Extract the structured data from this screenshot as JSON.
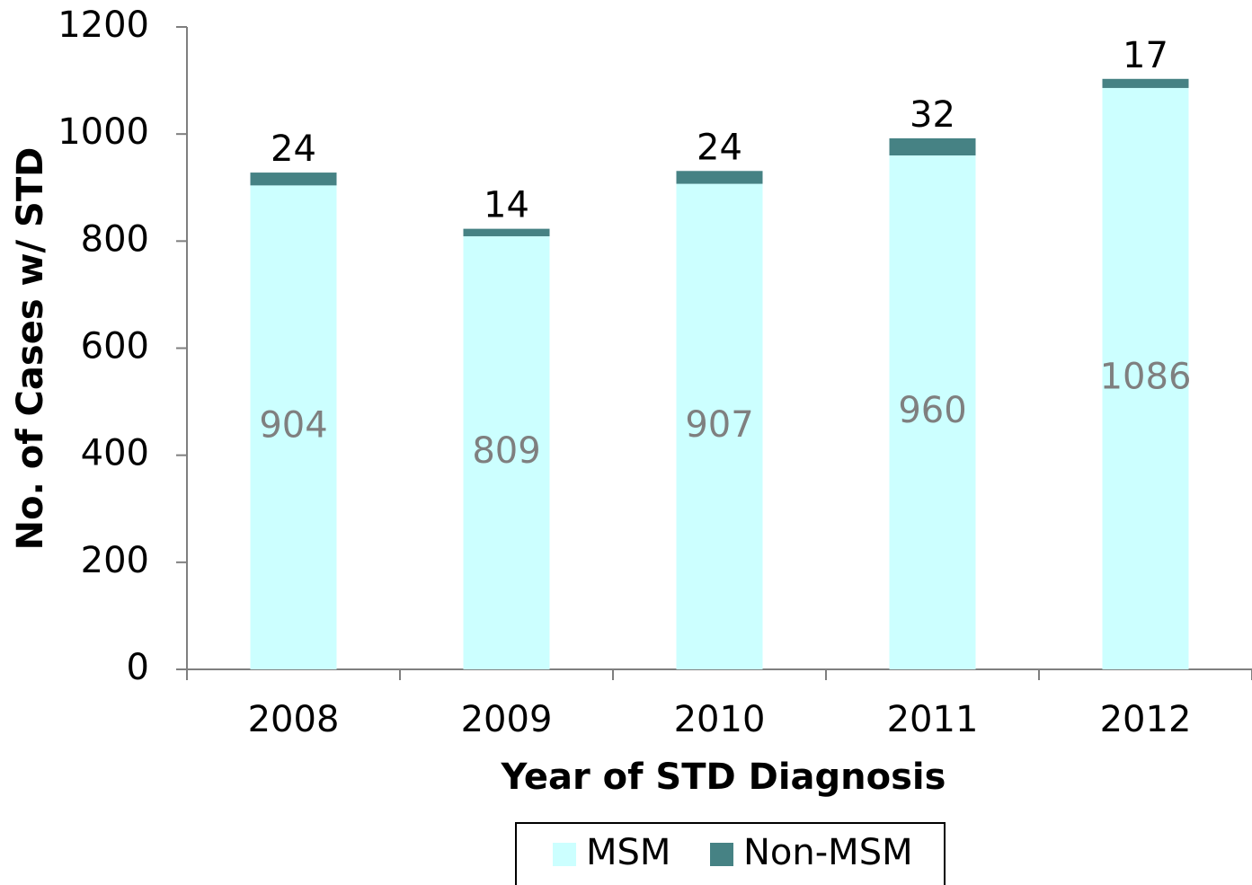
{
  "chart_data": {
    "type": "bar",
    "stacked": true,
    "x_label": "Year of STD Diagnosis",
    "y_label": "No. of Cases w/ STD",
    "categories": [
      "2008",
      "2009",
      "2010",
      "2011",
      "2012"
    ],
    "series": [
      {
        "name": "MSM",
        "color": "#ccffff",
        "label_color": "#7f7f7f",
        "values": [
          904,
          809,
          907,
          960,
          1086
        ]
      },
      {
        "name": "Non-MSM",
        "color": "#468284",
        "label_color": "#000000",
        "values": [
          24,
          14,
          24,
          32,
          17
        ]
      }
    ],
    "ylim": [
      0,
      1200
    ],
    "yticks": [
      0,
      200,
      400,
      600,
      800,
      1000,
      1200
    ],
    "grid": false,
    "legend": "bottom"
  }
}
